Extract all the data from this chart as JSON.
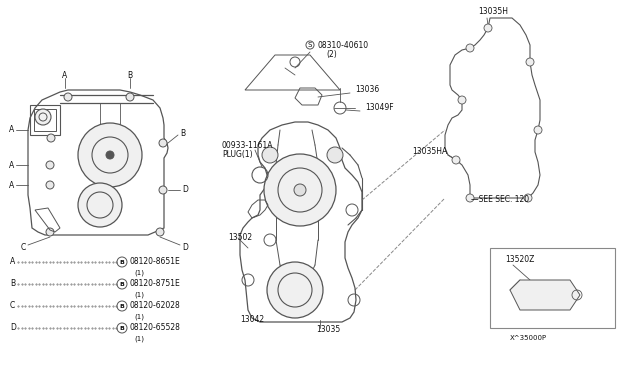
{
  "bg_color": "#ffffff",
  "line_color": "#555555",
  "text_color": "#111111",
  "fs": 5.5,
  "legend_entries": [
    {
      "label": "A",
      "part": "08120-8651E"
    },
    {
      "label": "B",
      "part": "08120-8751E"
    },
    {
      "label": "C",
      "part": "08120-62028"
    },
    {
      "label": "D",
      "part": "08120-65528"
    }
  ]
}
